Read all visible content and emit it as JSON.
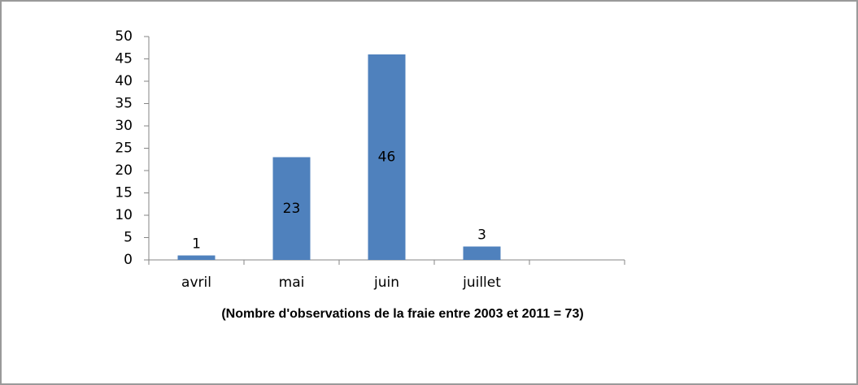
{
  "chart_data": {
    "type": "bar",
    "categories": [
      "avril",
      "mai",
      "juin",
      "juillet",
      null
    ],
    "values": [
      1,
      23,
      46,
      3,
      null
    ],
    "color": "#4f81bd",
    "x_label": "(Nombre d'observations de la fraie entre 2003 et 2011 = 73)",
    "ylim": [
      0,
      50
    ],
    "yticks": [
      0,
      5,
      10,
      15,
      20,
      25,
      30,
      35,
      40,
      45,
      50
    ],
    "grid": false
  }
}
